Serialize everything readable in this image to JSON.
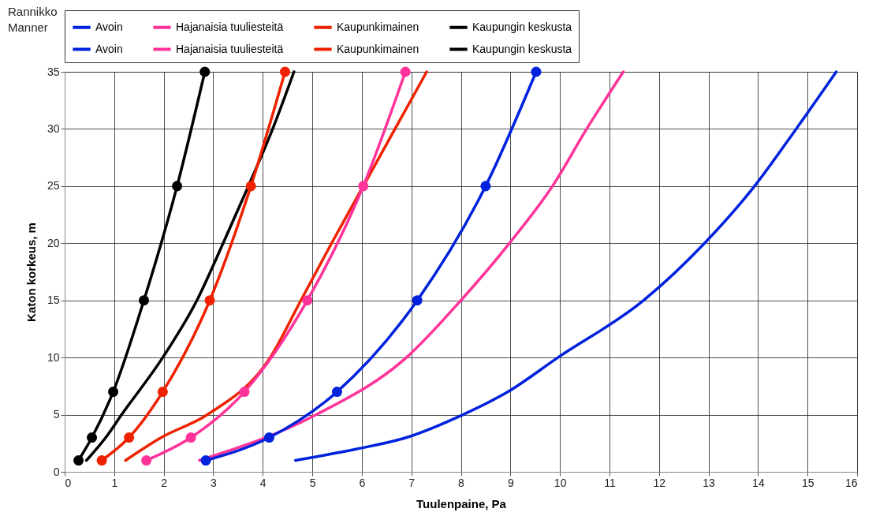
{
  "chart_data": {
    "type": "line",
    "xlabel": "Tuulenpaine, Pa",
    "ylabel": "Katon korkeus, m",
    "annotations": [
      "Rannikko",
      "Manner"
    ],
    "xlim": [
      0,
      16
    ],
    "xticks": [
      0,
      1,
      2,
      3,
      4,
      5,
      6,
      7,
      8,
      9,
      10,
      11,
      12,
      13,
      14,
      15,
      16
    ],
    "ylim": [
      0,
      35
    ],
    "yticks": [
      0,
      5,
      10,
      15,
      20,
      25,
      30,
      35
    ],
    "grid": true,
    "legend": "top",
    "series": [
      {
        "name": "Avoin",
        "color": "#0022dd",
        "marker": "none",
        "x": [
          4.66,
          5.9,
          6.9,
          8.04,
          8.95,
          9.96,
          11.69,
          12.92,
          13.93,
          14.77,
          15.58
        ],
        "values": [
          1,
          2,
          3,
          5,
          7,
          10,
          15,
          20,
          25,
          30,
          35
        ]
      },
      {
        "name": "Hajanaisia tuuliesteitä",
        "color": "#ff3399",
        "marker": "none",
        "x": [
          2.72,
          null,
          5.08,
          6.9,
          8.0,
          8.98,
          9.85,
          10.54,
          11.28
        ],
        "values": [
          1,
          null,
          5,
          10,
          15,
          20,
          25,
          30,
          35
        ]
      },
      {
        "name": "Kaupunkimainen",
        "color": "#ee2200",
        "marker": "none",
        "x": [
          1.23,
          1.95,
          2.88,
          4.15,
          4.77,
          5.39,
          6.03,
          6.67,
          7.31
        ],
        "values": [
          1,
          3,
          5,
          10,
          15,
          20,
          25,
          30,
          35
        ]
      },
      {
        "name": "Kaupungin keskusta",
        "color": "#000000",
        "marker": "none",
        "x": [
          0.44,
          0.83,
          1.15,
          1.98,
          2.67,
          3.2,
          3.71,
          4.2,
          4.63
        ],
        "values": [
          1,
          3,
          5,
          10,
          15,
          20,
          25,
          30,
          35
        ]
      },
      {
        "name": "Avoin",
        "color": "#0022dd",
        "marker": "circle",
        "x": [
          2.85,
          4.13,
          5.5,
          7.12,
          8.5,
          9.52
        ],
        "values": [
          1,
          3,
          7,
          15,
          25,
          35
        ]
      },
      {
        "name": "Hajanaisia tuuliesteitä",
        "color": "#ff3399",
        "marker": "circle",
        "x": [
          1.65,
          2.55,
          3.63,
          4.9,
          6.03,
          6.88
        ],
        "values": [
          1,
          3,
          7,
          15,
          25,
          35
        ]
      },
      {
        "name": "Kaupunkimainen",
        "color": "#ee2200",
        "marker": "circle",
        "x": [
          0.75,
          1.3,
          1.98,
          2.93,
          3.76,
          4.45
        ],
        "values": [
          1,
          3,
          7,
          15,
          25,
          35
        ]
      },
      {
        "name": "Kaupungin keskusta",
        "color": "#000000",
        "marker": "circle",
        "x": [
          0.28,
          0.55,
          0.98,
          1.6,
          2.27,
          2.83
        ],
        "values": [
          1,
          3,
          7,
          15,
          25,
          35
        ]
      }
    ]
  }
}
